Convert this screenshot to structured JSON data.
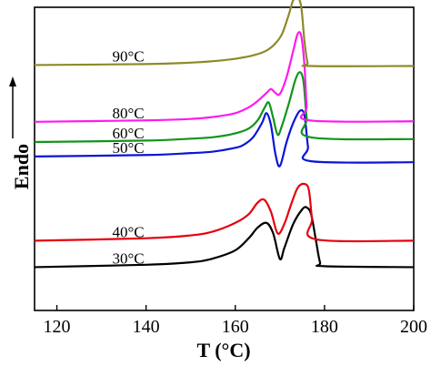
{
  "chart_data": {
    "type": "line",
    "title": "",
    "xlabel": "T (°C)",
    "ylabel": "Endo",
    "xlim": [
      115,
      200
    ],
    "ylim": [
      -0.9,
      5.4
    ],
    "xticks": [
      120,
      140,
      160,
      180,
      200
    ],
    "yticks_shown": false,
    "legend": "none",
    "series": [
      {
        "name": "30°C",
        "color": "#000000",
        "label_x": 136,
        "x": [
          115,
          140,
          150,
          155,
          160,
          163,
          165,
          167,
          168.5,
          170,
          171,
          173,
          175,
          176,
          177,
          178,
          179,
          180,
          200
        ],
        "y": [
          0.0,
          0.05,
          0.1,
          0.18,
          0.35,
          0.6,
          0.82,
          0.92,
          0.7,
          0.17,
          0.4,
          0.9,
          1.2,
          1.24,
          1.1,
          0.6,
          0.1,
          0.02,
          0.0
        ]
      },
      {
        "name": "40°C",
        "color": "#e6000e",
        "label_x": 136,
        "x": [
          115,
          140,
          150,
          155,
          160,
          163,
          165,
          166.5,
          168,
          169.5,
          171,
          172.5,
          174,
          175.5,
          176.5,
          177.2,
          178,
          200
        ],
        "y": [
          0.55,
          0.6,
          0.66,
          0.74,
          0.92,
          1.1,
          1.34,
          1.4,
          1.15,
          0.7,
          0.9,
          1.3,
          1.65,
          1.73,
          1.6,
          1.0,
          0.58,
          0.55
        ]
      },
      {
        "name": "50°C",
        "color": "#0a14d8",
        "label_x": 136,
        "x": [
          115,
          140,
          150,
          155,
          160,
          162,
          164,
          166,
          167,
          168,
          169,
          170,
          171.5,
          173,
          174.5,
          175.5,
          176.3,
          177,
          200
        ],
        "y": [
          2.3,
          2.33,
          2.37,
          2.4,
          2.48,
          2.55,
          2.7,
          3.0,
          3.2,
          2.95,
          2.35,
          2.1,
          2.6,
          3.0,
          3.25,
          3.15,
          2.5,
          2.2,
          2.18
        ]
      },
      {
        "name": "60°C",
        "color": "#11941b",
        "label_x": 136,
        "x": [
          115,
          140,
          150,
          155,
          160,
          163,
          165,
          166.5,
          167.5,
          168.5,
          169.5,
          170.5,
          172,
          173.5,
          174.5,
          175.3,
          176,
          176.8,
          200
        ],
        "y": [
          2.6,
          2.63,
          2.67,
          2.7,
          2.78,
          2.88,
          3.05,
          3.3,
          3.42,
          3.1,
          2.75,
          2.95,
          3.4,
          3.9,
          4.05,
          3.85,
          3.1,
          2.7,
          2.66
        ]
      },
      {
        "name": "80°C",
        "color": "#ff19f0",
        "label_x": 136,
        "x": [
          115,
          140,
          150,
          155,
          160,
          163,
          165,
          167,
          168,
          169,
          170,
          171.5,
          173,
          174,
          174.8,
          175.5,
          176,
          176.6,
          200
        ],
        "y": [
          3.02,
          3.05,
          3.08,
          3.12,
          3.2,
          3.32,
          3.45,
          3.62,
          3.7,
          3.62,
          3.6,
          3.95,
          4.5,
          4.85,
          4.8,
          4.2,
          3.35,
          3.05,
          3.03
        ]
      },
      {
        "name": "90°C",
        "color": "#8d8a28",
        "label_x": 136,
        "x": [
          115,
          140,
          150,
          155,
          160,
          164,
          167,
          169,
          170.5,
          172,
          173,
          174,
          174.8,
          175.5,
          176.2,
          177,
          200
        ],
        "y": [
          4.2,
          4.22,
          4.25,
          4.28,
          4.33,
          4.4,
          4.5,
          4.65,
          4.85,
          5.25,
          5.55,
          5.6,
          5.4,
          4.7,
          4.25,
          4.18,
          4.18
        ]
      }
    ]
  }
}
